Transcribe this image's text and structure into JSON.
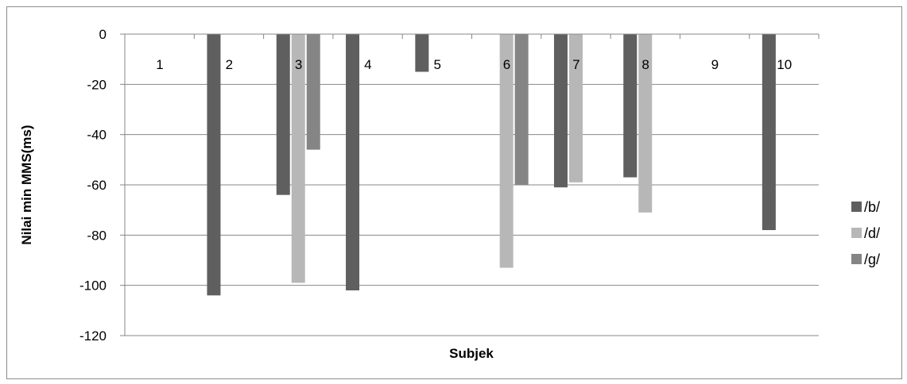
{
  "chart_data": {
    "type": "bar",
    "categories": [
      "1",
      "2",
      "3",
      "4",
      "5",
      "6",
      "7",
      "8",
      "9",
      "10"
    ],
    "series": [
      {
        "name": "/b/",
        "color": "#5f5f5f",
        "values": [
          0,
          -104,
          -64,
          -102,
          -15,
          0,
          -61,
          -57,
          0,
          -78
        ]
      },
      {
        "name": "/d/",
        "color": "#b7b7b7",
        "values": [
          0,
          0,
          -99,
          0,
          0,
          -93,
          -59,
          -71,
          0,
          0
        ]
      },
      {
        "name": "/g/",
        "color": "#858585",
        "values": [
          0,
          0,
          -46,
          0,
          0,
          -60,
          0,
          0,
          0,
          0
        ]
      }
    ],
    "xlabel": "Subjek",
    "ylabel": "Nilai min MMS(ms)",
    "ylim": [
      -120,
      0
    ],
    "yticks": [
      0,
      -20,
      -40,
      -60,
      -80,
      -100,
      -120
    ],
    "grid": true,
    "legend_position": "right"
  }
}
